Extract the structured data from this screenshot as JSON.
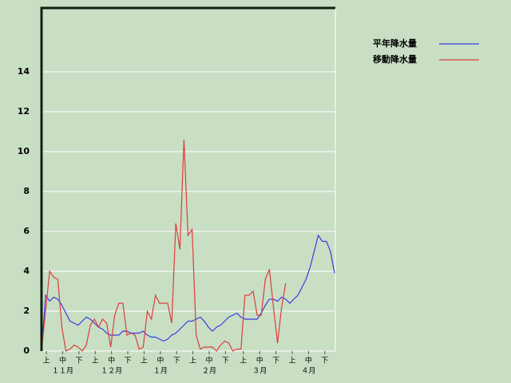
{
  "chart_data": {
    "type": "line",
    "x": [
      0,
      2.5,
      5,
      7.5,
      10,
      12.5,
      15,
      17.5,
      20,
      22.5,
      25,
      27.5,
      30,
      32.5,
      35,
      37.5,
      40,
      42.5,
      45,
      47.5,
      50,
      52.5,
      55,
      57.5,
      60,
      62.5,
      65,
      67.5,
      70,
      72.5,
      75,
      77.5,
      80,
      82.5,
      85,
      87.5,
      90,
      92.5,
      95,
      97.5,
      100,
      102.5,
      105,
      107.5,
      110,
      112.5,
      115,
      117.5,
      120,
      122.5,
      125,
      127.5,
      130,
      132.5,
      135,
      137.5,
      140,
      142.5,
      145,
      147.5,
      150,
      152.5,
      155,
      157.5,
      160,
      162.5,
      165,
      167.5,
      170,
      172.5,
      175,
      177.5,
      180
    ],
    "xlim": [
      0,
      180.5
    ],
    "xticks": [
      {
        "value": 3,
        "label": "上"
      },
      {
        "value": 13,
        "label": "中"
      },
      {
        "value": 23,
        "label": "下"
      },
      {
        "value": 33,
        "label": "上"
      },
      {
        "value": 43,
        "label": "中"
      },
      {
        "value": 53,
        "label": "下"
      },
      {
        "value": 63,
        "label": "上"
      },
      {
        "value": 73,
        "label": "中"
      },
      {
        "value": 83,
        "label": "下"
      },
      {
        "value": 93,
        "label": "上"
      },
      {
        "value": 103,
        "label": "中"
      },
      {
        "value": 113,
        "label": "下"
      },
      {
        "value": 124,
        "label": "上"
      },
      {
        "value": 134,
        "label": "中"
      },
      {
        "value": 144,
        "label": "下"
      },
      {
        "value": 154,
        "label": "上"
      },
      {
        "value": 164,
        "label": "中"
      },
      {
        "value": 174,
        "label": "下"
      }
    ],
    "month_ticks": [
      {
        "value": 13,
        "label": "１１月"
      },
      {
        "value": 43,
        "label": "１２月"
      },
      {
        "value": 73,
        "label": "１月"
      },
      {
        "value": 103,
        "label": "２月"
      },
      {
        "value": 134,
        "label": "３月"
      },
      {
        "value": 164,
        "label": "４月"
      }
    ],
    "ylim": [
      0,
      17.2
    ],
    "yticks": [
      0,
      2,
      4,
      6,
      8,
      10,
      12,
      14
    ],
    "grid": true,
    "legend": "top-right",
    "series": [
      {
        "name": "平年降水量",
        "color": "#3a3ae0",
        "values": [
          0,
          2.8,
          2.5,
          2.7,
          2.6,
          2.3,
          1.9,
          1.5,
          1.4,
          1.3,
          1.5,
          1.7,
          1.6,
          1.4,
          1.2,
          1.1,
          0.9,
          0.8,
          0.8,
          0.8,
          1.0,
          1.0,
          0.9,
          0.9,
          0.9,
          1.0,
          0.8,
          0.7,
          0.7,
          0.6,
          0.5,
          0.6,
          0.8,
          0.9,
          1.1,
          1.3,
          1.5,
          1.5,
          1.6,
          1.7,
          1.5,
          1.2,
          1.0,
          1.2,
          1.3,
          1.5,
          1.7,
          1.8,
          1.9,
          1.7,
          1.6,
          1.6,
          1.6,
          1.6,
          1.9,
          2.3,
          2.6,
          2.6,
          2.5,
          2.7,
          2.6,
          2.4,
          2.6,
          2.8,
          3.2,
          3.6,
          4.2,
          5.0,
          5.8,
          5.5,
          5.5,
          5.0,
          3.9
        ]
      },
      {
        "name": "移動降水量",
        "color": "#e03c3c",
        "values": [
          0,
          2.0,
          4.0,
          3.7,
          3.6,
          1.2,
          0,
          0.1,
          0.3,
          0.2,
          0,
          0.3,
          1.3,
          1.6,
          1.2,
          1.6,
          1.4,
          0.2,
          1.8,
          2.4,
          2.4,
          0.8,
          0.9,
          0.8,
          0.1,
          0.2,
          2.0,
          1.6,
          2.8,
          2.4,
          2.4,
          2.4,
          1.4,
          6.4,
          5.1,
          10.6,
          5.8,
          6.1,
          0.8,
          0.1,
          0.2,
          0.2,
          0.2,
          0,
          0.3,
          0.5,
          0.4,
          0,
          0.1,
          0.1,
          2.8,
          2.8,
          3.0,
          1.8,
          1.8,
          3.6,
          4.1,
          2.2,
          0.4,
          2.2,
          3.4,
          null,
          null,
          null,
          null,
          null,
          null,
          null,
          null,
          null,
          null,
          null,
          null
        ]
      }
    ]
  }
}
